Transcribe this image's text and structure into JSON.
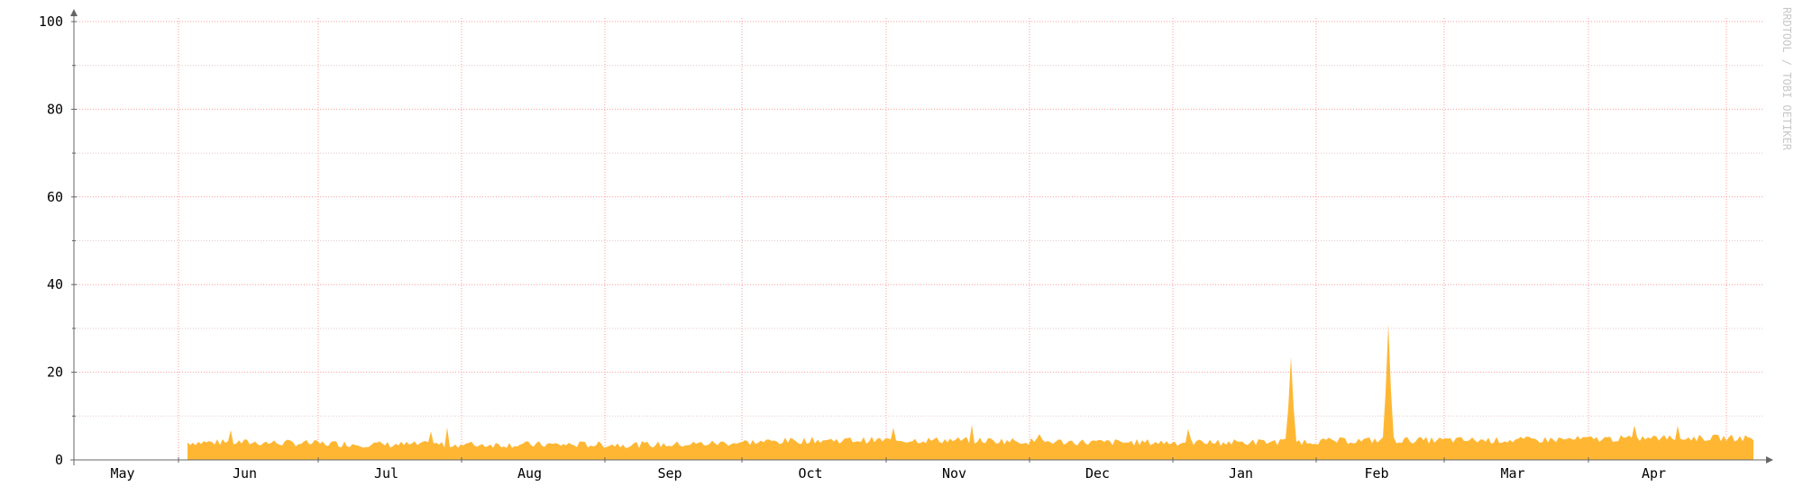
{
  "chart_data": {
    "type": "area",
    "title": "",
    "xlabel": "",
    "ylabel": "",
    "ylim": [
      0,
      100
    ],
    "y_ticks": [
      0,
      20,
      40,
      60,
      80,
      100
    ],
    "x_tick_labels": [
      "May",
      "Jun",
      "Jul",
      "Aug",
      "Sep",
      "Oct",
      "Nov",
      "Dec",
      "Jan",
      "Feb",
      "Mar",
      "Apr"
    ],
    "grid": true,
    "legend": "none",
    "watermark": "RRDTOOL / TOBI OETIKER",
    "fill_color": "#ffb733",
    "grid_color": "#ff9999",
    "minor_grid_color": "#e6c8c8",
    "axis_color": "#666666",
    "series": [
      {
        "x": [
          "Jun",
          "Jul",
          "Aug",
          "Sep",
          "Oct",
          "Nov",
          "Dec",
          "Jan",
          "Feb",
          "Mar",
          "Apr"
        ],
        "values": [
          4,
          3.5,
          3.5,
          3.5,
          4.5,
          4.5,
          4,
          4,
          4.5,
          4.5,
          5
        ],
        "peaks": [
          {
            "x": "Jan",
            "value": 23.5
          },
          {
            "x": "Feb",
            "value": 31
          }
        ]
      }
    ]
  }
}
